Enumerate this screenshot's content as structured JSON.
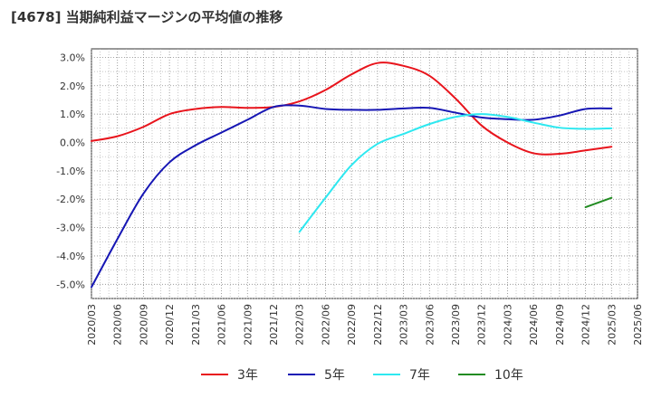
{
  "title": "[4678]  当期純利益マージンの平均値の推移",
  "chart_data": {
    "type": "line",
    "title": "[4678]  当期純利益マージンの平均値の推移",
    "xlabel": "",
    "ylabel": "",
    "ylim": [
      -5.5,
      3.3
    ],
    "yticks": [
      3.0,
      2.0,
      1.0,
      0.0,
      -1.0,
      -2.0,
      -3.0,
      -4.0,
      -5.0
    ],
    "ytick_labels": [
      "3.0%",
      "2.0%",
      "1.0%",
      "0.0%",
      "-1.0%",
      "-2.0%",
      "-3.0%",
      "-4.0%",
      "-5.0%"
    ],
    "xtick_labels": [
      "2020/03",
      "2020/06",
      "2020/09",
      "2020/12",
      "2021/03",
      "2021/06",
      "2021/09",
      "2021/12",
      "2022/03",
      "2022/06",
      "2022/09",
      "2022/12",
      "2023/03",
      "2023/06",
      "2023/09",
      "2023/12",
      "2024/03",
      "2024/06",
      "2024/09",
      "2024/12",
      "2025/03",
      "2025/06"
    ],
    "grid": true,
    "legend_position": "bottom",
    "series": [
      {
        "name": "3年",
        "color": "#e8141c",
        "x": [
          "2020/03",
          "2020/06",
          "2020/09",
          "2020/12",
          "2021/03",
          "2021/06",
          "2021/09",
          "2021/12",
          "2022/03",
          "2022/06",
          "2022/09",
          "2022/12",
          "2023/03",
          "2023/06",
          "2023/09",
          "2023/12",
          "2024/03",
          "2024/06",
          "2024/09",
          "2024/12",
          "2025/03"
        ],
        "values": [
          0.05,
          0.22,
          0.55,
          1.0,
          1.18,
          1.25,
          1.22,
          1.25,
          1.45,
          1.85,
          2.4,
          2.8,
          2.7,
          2.35,
          1.55,
          0.6,
          0.0,
          -0.38,
          -0.4,
          -0.28,
          -0.15
        ]
      },
      {
        "name": "5年",
        "color": "#1616b4",
        "x": [
          "2020/03",
          "2020/06",
          "2020/09",
          "2020/12",
          "2021/03",
          "2021/06",
          "2021/09",
          "2021/12",
          "2022/03",
          "2022/06",
          "2022/09",
          "2022/12",
          "2023/03",
          "2023/06",
          "2023/09",
          "2023/12",
          "2024/03",
          "2024/06",
          "2024/09",
          "2024/12",
          "2025/03"
        ],
        "values": [
          -5.1,
          -3.4,
          -1.8,
          -0.7,
          -0.1,
          0.35,
          0.8,
          1.25,
          1.3,
          1.18,
          1.15,
          1.15,
          1.2,
          1.22,
          1.05,
          0.88,
          0.82,
          0.8,
          0.95,
          1.18,
          1.2
        ]
      },
      {
        "name": "7年",
        "color": "#2ee8f0",
        "x": [
          "2022/03",
          "2022/06",
          "2022/09",
          "2022/12",
          "2023/03",
          "2023/06",
          "2023/09",
          "2023/12",
          "2024/03",
          "2024/06",
          "2024/09",
          "2024/12",
          "2025/03"
        ],
        "values": [
          -3.15,
          -1.95,
          -0.8,
          -0.05,
          0.3,
          0.65,
          0.9,
          1.0,
          0.9,
          0.7,
          0.52,
          0.48,
          0.5
        ]
      },
      {
        "name": "10年",
        "color": "#228b22",
        "x": [
          "2024/12",
          "2025/03"
        ],
        "values": [
          -2.28,
          -1.95
        ]
      }
    ]
  }
}
